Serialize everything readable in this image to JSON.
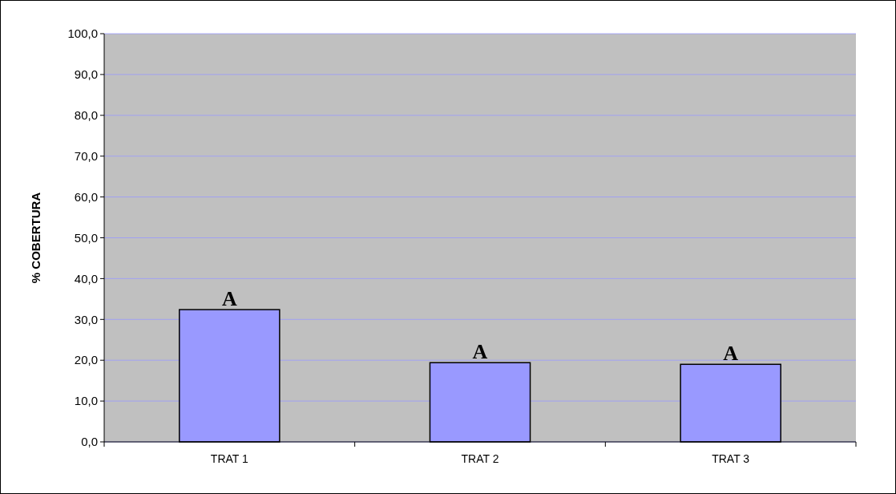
{
  "chart_data": {
    "type": "bar",
    "ylabel": "% COBERTURA",
    "categories": [
      "TRAT 1",
      "TRAT 2",
      "TRAT 3"
    ],
    "values": [
      32.4,
      19.4,
      19.0
    ],
    "color": "#9999ff",
    "ylim": [
      0,
      100
    ],
    "yticks": [
      {
        "value": 0,
        "label": "0,0"
      },
      {
        "value": 10,
        "label": "10,0"
      },
      {
        "value": 20,
        "label": "20,0"
      },
      {
        "value": 30,
        "label": "30,0"
      },
      {
        "value": 40,
        "label": "40,0"
      },
      {
        "value": 50,
        "label": "50,0"
      },
      {
        "value": 60,
        "label": "60,0"
      },
      {
        "value": 70,
        "label": "70,0"
      },
      {
        "value": 80,
        "label": "80,0"
      },
      {
        "value": 90,
        "label": "90,0"
      },
      {
        "value": 100,
        "label": "100,0"
      }
    ],
    "grid": "y",
    "annotations": [
      {
        "text": "A",
        "x": "TRAT 1",
        "y": 32.4
      },
      {
        "text": "A",
        "x": "TRAT 2",
        "y": 19.4
      },
      {
        "text": "A",
        "x": "TRAT 3",
        "y": 19.0
      }
    ]
  }
}
